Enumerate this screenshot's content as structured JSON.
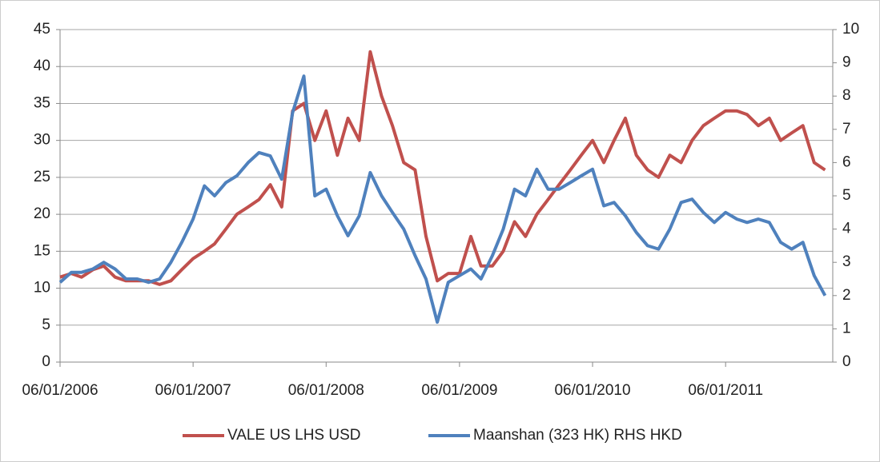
{
  "chart_data": {
    "type": "line",
    "x": [
      "06/01/2006",
      "06/02/2006",
      "06/03/2006",
      "06/04/2006",
      "06/05/2006",
      "06/06/2006",
      "06/07/2006",
      "06/08/2006",
      "06/09/2006",
      "06/10/2006",
      "06/11/2006",
      "06/12/2006",
      "06/01/2007",
      "06/02/2007",
      "06/03/2007",
      "06/04/2007",
      "06/05/2007",
      "06/06/2007",
      "06/07/2007",
      "06/08/2007",
      "06/09/2007",
      "06/10/2007",
      "06/11/2007",
      "06/12/2007",
      "06/01/2008",
      "06/02/2008",
      "06/03/2008",
      "06/04/2008",
      "06/05/2008",
      "06/06/2008",
      "06/07/2008",
      "06/08/2008",
      "06/09/2008",
      "06/10/2008",
      "06/11/2008",
      "06/12/2008",
      "06/01/2009",
      "06/02/2009",
      "06/03/2009",
      "06/04/2009",
      "06/05/2009",
      "06/06/2009",
      "06/07/2009",
      "06/08/2009",
      "06/09/2009",
      "06/10/2009",
      "06/11/2009",
      "06/12/2009",
      "06/01/2010",
      "06/02/2010",
      "06/03/2010",
      "06/04/2010",
      "06/05/2010",
      "06/06/2010",
      "06/07/2010",
      "06/08/2010",
      "06/09/2010",
      "06/10/2010",
      "06/11/2010",
      "06/12/2010",
      "06/01/2011",
      "06/02/2011",
      "06/03/2011",
      "06/04/2011",
      "06/05/2011",
      "06/06/2011",
      "06/07/2011",
      "06/08/2011",
      "06/09/2011",
      "06/10/2011"
    ],
    "series": [
      {
        "name": "VALE US LHS USD",
        "color": "#c0504d",
        "values": [
          11.5,
          12,
          11.5,
          12.5,
          13,
          11.5,
          11,
          11,
          11,
          10.5,
          11,
          12.5,
          14,
          15,
          16,
          18,
          20,
          21,
          22,
          24,
          21,
          34,
          35,
          30,
          34,
          28,
          33,
          30,
          42,
          36,
          32,
          27,
          26,
          17,
          11,
          12,
          12,
          17,
          13,
          13,
          15,
          19,
          17,
          20,
          22,
          24,
          26,
          28,
          30,
          27,
          30,
          33,
          28,
          26,
          25,
          28,
          27,
          30,
          32,
          33,
          34,
          34,
          33.5,
          32,
          33,
          30,
          31,
          32,
          27,
          26
        ]
      },
      {
        "name": "Maanshan (323 HK) RHS HKD",
        "color": "#4f81bd",
        "axis": "y2",
        "values": [
          2.4,
          2.7,
          2.7,
          2.8,
          3.0,
          2.8,
          2.5,
          2.5,
          2.4,
          2.5,
          3.0,
          3.6,
          4.3,
          5.3,
          5.0,
          5.4,
          5.6,
          6.0,
          6.3,
          6.2,
          5.5,
          7.5,
          8.6,
          5.0,
          5.2,
          4.4,
          3.8,
          4.4,
          5.7,
          5.0,
          4.5,
          4.0,
          3.2,
          2.5,
          1.2,
          2.4,
          2.6,
          2.8,
          2.5,
          3.2,
          4.0,
          5.2,
          5.0,
          5.8,
          5.2,
          5.2,
          5.4,
          5.6,
          5.8,
          4.7,
          4.8,
          4.4,
          3.9,
          3.5,
          3.4,
          4.0,
          4.8,
          4.9,
          4.5,
          4.2,
          4.5,
          4.3,
          4.2,
          4.3,
          4.2,
          3.6,
          3.4,
          3.6,
          2.6,
          2.0
        ]
      }
    ],
    "xlim": [
      "06/01/2006",
      "27/10/2011"
    ],
    "xticks": [
      "06/01/2006",
      "06/01/2007",
      "06/01/2008",
      "06/01/2009",
      "06/01/2010",
      "06/01/2011"
    ],
    "ylim": [
      0,
      45
    ],
    "yticks": [
      0,
      5,
      10,
      15,
      20,
      25,
      30,
      35,
      40,
      45
    ],
    "y2lim": [
      0,
      10
    ],
    "y2ticks": [
      0,
      1,
      2,
      3,
      4,
      5,
      6,
      7,
      8,
      9,
      10
    ],
    "grid": true,
    "legend": "bottom"
  }
}
